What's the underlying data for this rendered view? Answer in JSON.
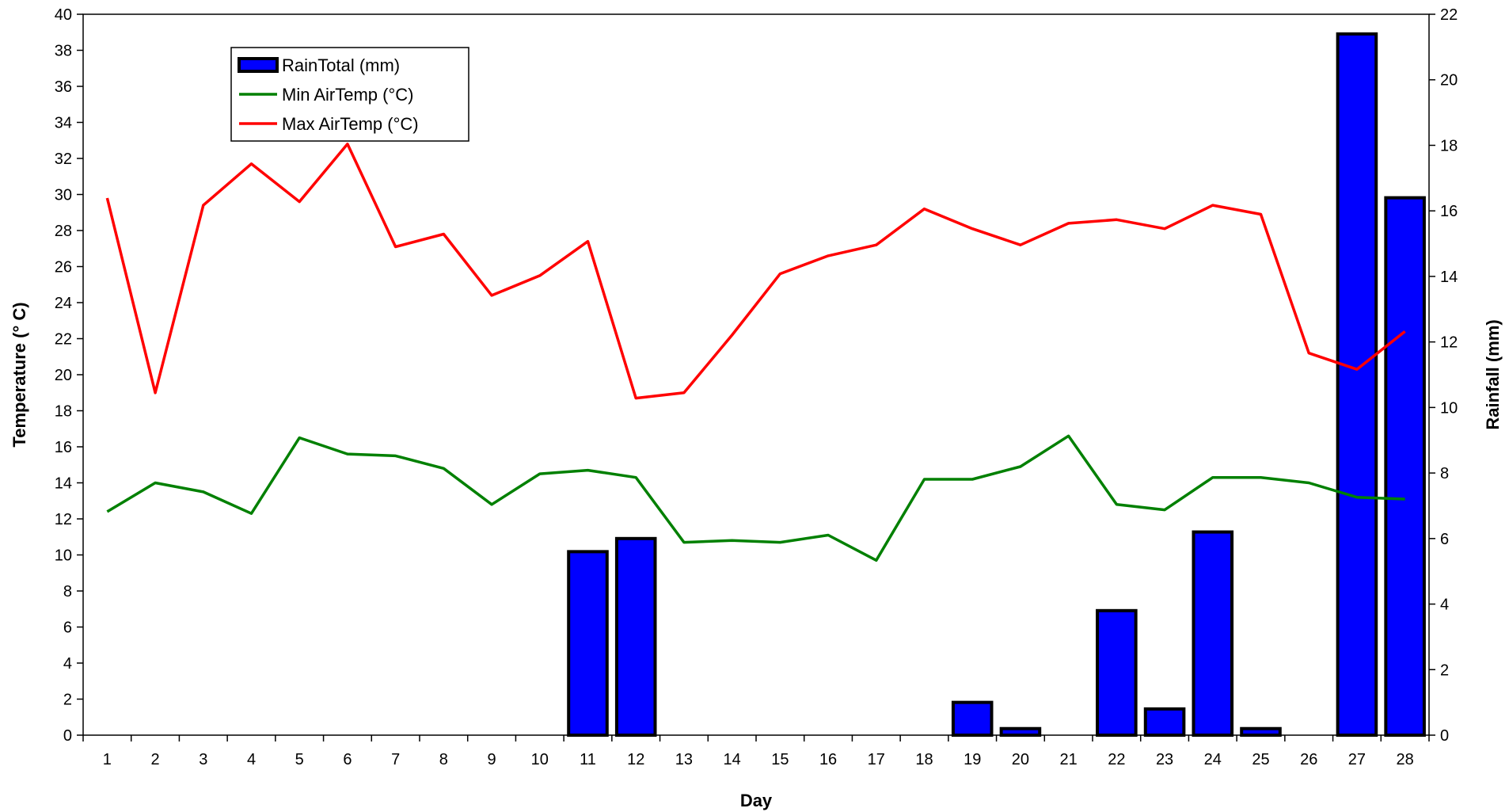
{
  "chart_data": {
    "type": "bar+line",
    "xlabel": "Day",
    "ylabel_left": "Temperature (° C)",
    "ylabel_right": "Rainfall (mm)",
    "ylim_left": [
      0,
      40
    ],
    "ylim_right": [
      0,
      22
    ],
    "yticks_left": [
      0,
      2,
      4,
      6,
      8,
      10,
      12,
      14,
      16,
      18,
      20,
      22,
      24,
      26,
      28,
      30,
      32,
      34,
      36,
      38,
      40
    ],
    "yticks_right": [
      0,
      2,
      4,
      6,
      8,
      10,
      12,
      14,
      16,
      18,
      20,
      22
    ],
    "categories": [
      "1",
      "2",
      "3",
      "4",
      "5",
      "6",
      "7",
      "8",
      "9",
      "10",
      "11",
      "12",
      "13",
      "14",
      "15",
      "16",
      "17",
      "18",
      "19",
      "20",
      "21",
      "22",
      "23",
      "24",
      "25",
      "26",
      "27",
      "28"
    ],
    "grid": false,
    "legend_position": "top-left",
    "series": [
      {
        "name": "RainTotal (mm)",
        "kind": "bar",
        "axis": "right",
        "color": "#0000ff",
        "values": [
          0,
          0,
          0,
          0,
          0,
          0,
          0,
          0,
          0,
          0,
          5.6,
          6.0,
          0,
          0,
          0,
          0,
          0,
          0,
          1.0,
          0.2,
          0,
          3.8,
          0.8,
          6.2,
          0.2,
          0,
          21.4,
          16.4
        ]
      },
      {
        "name": "Min AirTemp (°C)",
        "kind": "line",
        "axis": "left",
        "color": "#008000",
        "values": [
          12.4,
          14.0,
          13.5,
          12.3,
          16.5,
          15.6,
          15.5,
          14.8,
          12.8,
          14.5,
          14.7,
          14.3,
          10.7,
          10.8,
          10.7,
          11.1,
          9.7,
          14.2,
          14.2,
          14.9,
          16.6,
          12.8,
          12.5,
          14.3,
          14.3,
          14.0,
          13.2,
          13.1
        ]
      },
      {
        "name": "Max AirTemp (°C)",
        "kind": "line",
        "axis": "left",
        "color": "#ff0000",
        "values": [
          29.8,
          19.0,
          29.4,
          31.7,
          29.6,
          32.8,
          27.1,
          27.8,
          24.4,
          25.5,
          27.4,
          18.7,
          19.0,
          22.2,
          25.6,
          26.6,
          27.2,
          29.2,
          28.1,
          27.2,
          28.4,
          28.6,
          28.1,
          29.4,
          28.9,
          21.2,
          20.3,
          22.4
        ]
      }
    ]
  }
}
